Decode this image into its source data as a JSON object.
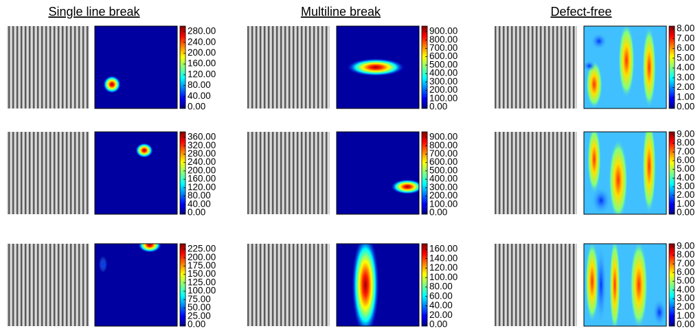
{
  "columns": [
    {
      "header": "Single line break",
      "rows": [
        {
          "colorbar_ticks": [
            "280.00",
            "240.00",
            "200.00",
            "160.00",
            "120.00",
            "80.00",
            "40.00",
            "0.00"
          ]
        },
        {
          "colorbar_ticks": [
            "360.00",
            "320.00",
            "280.00",
            "240.00",
            "200.00",
            "160.00",
            "120.00",
            "80.00",
            "40.00",
            "0.00"
          ]
        },
        {
          "colorbar_ticks": [
            "225.00",
            "200.00",
            "175.00",
            "150.00",
            "125.00",
            "100.00",
            "75.00",
            "50.00",
            "25.00",
            "0.00"
          ]
        }
      ]
    },
    {
      "header": "Multiline break",
      "rows": [
        {
          "colorbar_ticks": [
            "900.00",
            "800.00",
            "700.00",
            "600.00",
            "500.00",
            "400.00",
            "300.00",
            "200.00",
            "100.00",
            "0.00"
          ]
        },
        {
          "colorbar_ticks": [
            "900.00",
            "800.00",
            "700.00",
            "600.00",
            "500.00",
            "400.00",
            "300.00",
            "200.00",
            "100.00",
            "0.00"
          ]
        },
        {
          "colorbar_ticks": [
            "160.00",
            "140.00",
            "120.00",
            "100.00",
            "80.00",
            "60.00",
            "40.00",
            "20.00",
            "0.00"
          ]
        }
      ]
    },
    {
      "header": "Defect-free",
      "rows": [
        {
          "colorbar_ticks": [
            "8.00",
            "7.00",
            "6.00",
            "5.00",
            "4.00",
            "3.00",
            "2.00",
            "1.00",
            "0.00"
          ]
        },
        {
          "colorbar_ticks": [
            "9.00",
            "8.00",
            "7.00",
            "6.00",
            "5.00",
            "4.00",
            "3.00",
            "2.00",
            "1.00",
            "0.00"
          ]
        },
        {
          "colorbar_ticks": [
            "9.00",
            "8.00",
            "7.00",
            "6.00",
            "5.00",
            "4.00",
            "3.00",
            "2.00",
            "1.00",
            "0.00"
          ]
        }
      ]
    }
  ]
}
